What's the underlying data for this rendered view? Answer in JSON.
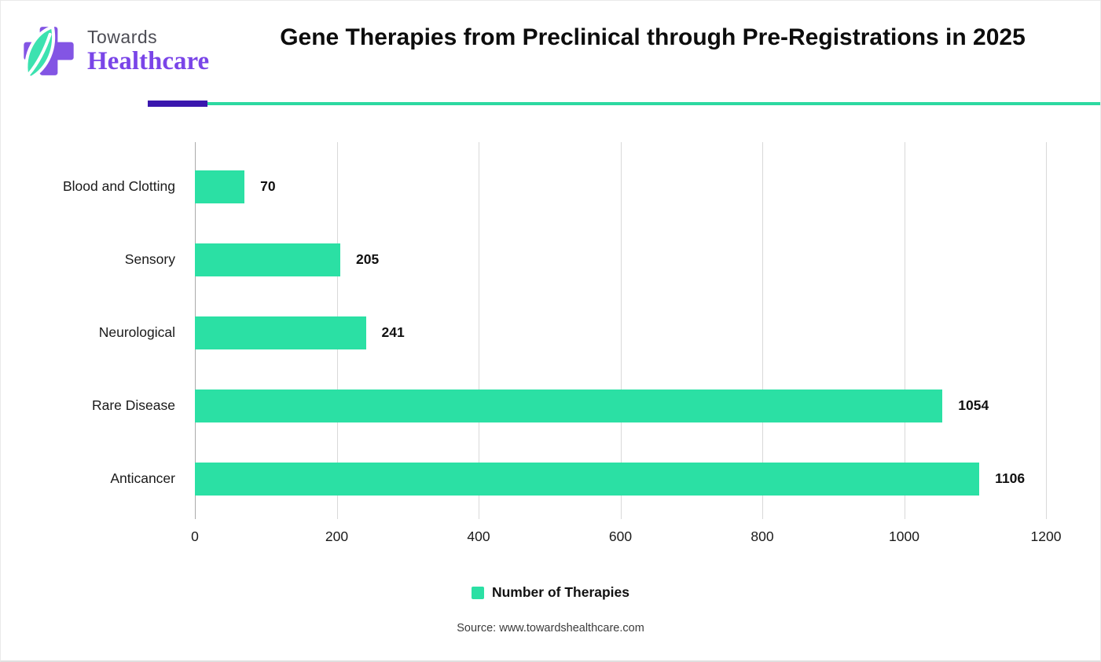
{
  "brand": {
    "line1": "Towards",
    "line2": "Healthcare"
  },
  "chart_data": {
    "type": "bar",
    "orientation": "horizontal",
    "title": "Gene Therapies from Preclinical through Pre-Registrations in 2025",
    "categories": [
      "Blood and Clotting",
      "Sensory",
      "Neurological",
      "Rare Disease",
      "Anticancer"
    ],
    "values": [
      70,
      205,
      241,
      1054,
      1106
    ],
    "series_name": "Number of Therapies",
    "xlabel": "",
    "ylabel": "",
    "xlim": [
      0,
      1272
    ],
    "xticks": [
      0,
      200,
      400,
      600,
      800,
      1000,
      1200
    ],
    "grid": "vertical-gridlines",
    "legend_position": "bottom",
    "bar_color": "#2be0a4"
  },
  "legend": {
    "label": "Number of Therapies"
  },
  "source": "Source: www.towardshealthcare.com",
  "colors": {
    "bar_green": "#2be0a4",
    "rule_purple": "#3a17ae",
    "rule_teal": "#2dd9a1",
    "logo_purple": "#8355e4",
    "logo_leaf": "#3ce2b0",
    "title_text": "#0d0d0d",
    "gridline": "#d9d9d9"
  }
}
